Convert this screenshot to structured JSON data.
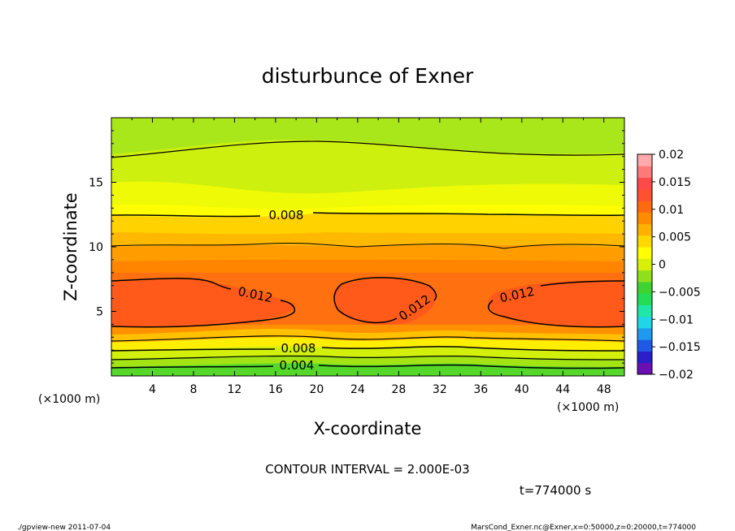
{
  "chart_data": {
    "type": "heatmap",
    "title": "disturbunce of Exner",
    "xlabel": "X-coordinate",
    "ylabel": "Z-coordinate",
    "x_unit_left": "(×1000 m)",
    "x_unit_right": "(×1000 m)",
    "xlim": [
      0,
      50
    ],
    "ylim": [
      0,
      20
    ],
    "x_ticks": [
      "4",
      "8",
      "12",
      "16",
      "20",
      "24",
      "28",
      "32",
      "36",
      "40",
      "44",
      "48"
    ],
    "y_ticks": [
      "5",
      "10",
      "15"
    ],
    "colorbar": {
      "min": -0.02,
      "max": 0.02,
      "labels": [
        "0.02",
        "0.015",
        "0.01",
        "0.005",
        "0",
        "−0.005",
        "−0.01",
        "−0.015",
        "−0.02"
      ],
      "colors": [
        "#6b0fb5",
        "#2a1fc9",
        "#1f5ae6",
        "#1f99f0",
        "#20d6e6",
        "#20e6a8",
        "#22dd55",
        "#3fd230",
        "#8fe01c",
        "#d6f00a",
        "#ffff00",
        "#ffd800",
        "#ffb000",
        "#ff8c00",
        "#ff6a10",
        "#ff5030",
        "#ff4a4a",
        "#ff7a7a",
        "#ffaaaa"
      ]
    },
    "contour_labels": [
      "0.008",
      "0.012",
      "0.012",
      "0.012",
      "0.008",
      "0.004"
    ],
    "contour_interval": "CONTOUR INTERVAL = 2.000E-03",
    "time": "t=774000 s"
  },
  "footer": {
    "left": "./gpview-new   2011-07-04",
    "right": "MarsCond_Exner.nc@Exner,x=0:50000,z=0:20000,t=774000"
  }
}
